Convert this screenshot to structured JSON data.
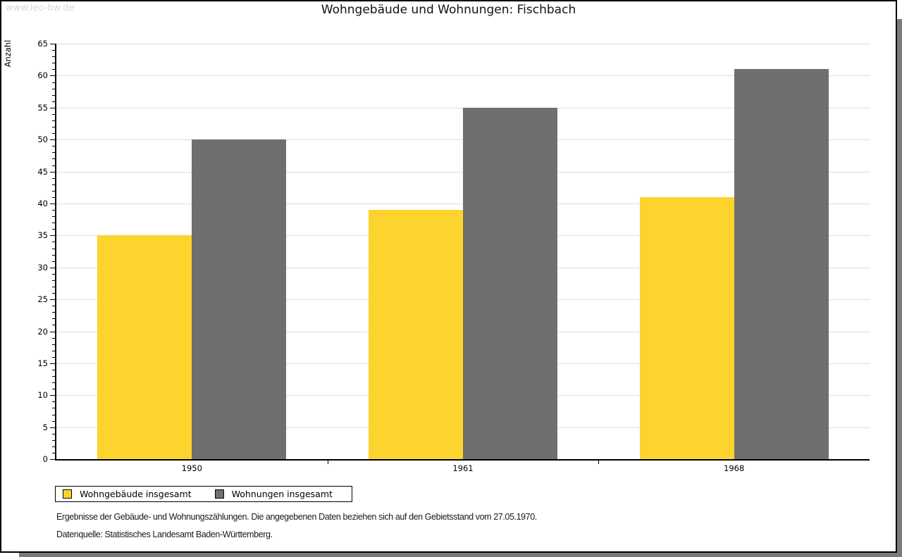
{
  "watermark": "www.leo-bw.de",
  "chart_data": {
    "type": "bar",
    "title": "Wohngebäude und Wohnungen: Fischbach",
    "ylabel": "Anzahl",
    "xlabel": "",
    "categories": [
      "1950",
      "1961",
      "1968"
    ],
    "series": [
      {
        "name": "Wohngebäude insgesamt",
        "color": "#FDD42E",
        "values": [
          35,
          39,
          41
        ]
      },
      {
        "name": "Wohnungen insgesamt",
        "color": "#6F6F6F",
        "values": [
          50,
          55,
          61
        ]
      }
    ],
    "ylim": [
      0,
      65
    ],
    "ytick_step": 5,
    "yminor_step": 1,
    "grid": true,
    "gridline_color": "#DDDDDD",
    "legend_position": "bottom-left"
  },
  "footnotes": [
    "Ergebnisse der Gebäude- und Wohnungszählungen. Die angegebenen Daten beziehen sich auf den Gebietsstand vom 27.05.1970.",
    "Datenquelle: Statistisches Landesamt Baden-Württemberg."
  ]
}
